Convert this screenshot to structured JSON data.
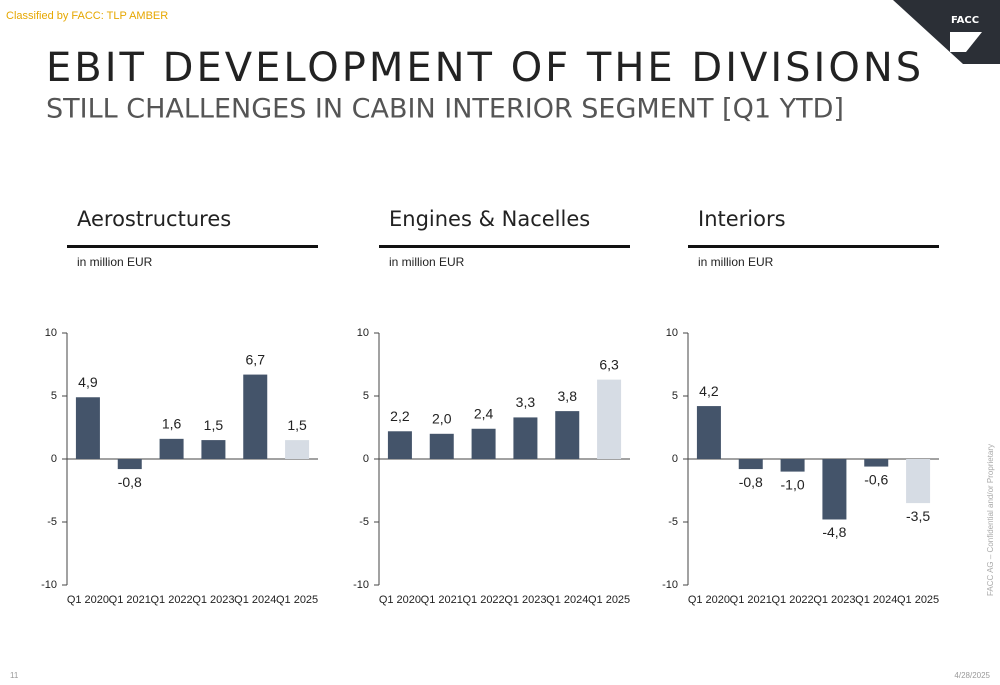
{
  "slide": {
    "classification": "Classified by FACC: TLP AMBER",
    "title": "EBIT DEVELOPMENT OF THE DIVISIONS",
    "subtitle": "STILL CHALLENGES IN CABIN INTERIOR SEGMENT [Q1 YTD]",
    "logo": "FACC",
    "page_number": "11",
    "date": "4/28/2025",
    "confidentiality": "FACC AG – Confidential and/or Proprietary"
  },
  "chart_data": [
    {
      "type": "bar",
      "title": "Aerostructures",
      "subtitle": "in million EUR",
      "categories": [
        "Q1 2020",
        "Q1 2021",
        "Q1 2022",
        "Q1 2023",
        "Q1 2024",
        "Q1 2025"
      ],
      "values": [
        4.9,
        -0.8,
        1.6,
        1.5,
        6.7,
        1.5
      ],
      "value_labels": [
        "4,9",
        "-0,8",
        "1,6",
        "1,5",
        "6,7",
        "1,5"
      ],
      "colors": [
        "#44546a",
        "#44546a",
        "#44546a",
        "#44546a",
        "#44546a",
        "#d6dce4"
      ],
      "ylim": [
        -10,
        10
      ],
      "yticks": [
        -10,
        -5,
        0,
        5,
        10
      ]
    },
    {
      "type": "bar",
      "title": "Engines & Nacelles",
      "subtitle": "in million EUR",
      "categories": [
        "Q1 2020",
        "Q1 2021",
        "Q1 2022",
        "Q1 2023",
        "Q1 2024",
        "Q1 2025"
      ],
      "values": [
        2.2,
        2.0,
        2.4,
        3.3,
        3.8,
        6.3
      ],
      "value_labels": [
        "2,2",
        "2,0",
        "2,4",
        "3,3",
        "3,8",
        "6,3"
      ],
      "colors": [
        "#44546a",
        "#44546a",
        "#44546a",
        "#44546a",
        "#44546a",
        "#d6dce4"
      ],
      "ylim": [
        -10,
        10
      ],
      "yticks": [
        -10,
        -5,
        0,
        5,
        10
      ]
    },
    {
      "type": "bar",
      "title": "Interiors",
      "subtitle": "in million EUR",
      "categories": [
        "Q1 2020",
        "Q1 2021",
        "Q1 2022",
        "Q1 2023",
        "Q1 2024",
        "Q1 2025"
      ],
      "values": [
        4.2,
        -0.8,
        -1.0,
        -4.8,
        -0.6,
        -3.5
      ],
      "value_labels": [
        "4,2",
        "-0,8",
        "-1,0",
        "-4,8",
        "-0,6",
        "-3,5"
      ],
      "colors": [
        "#44546a",
        "#44546a",
        "#44546a",
        "#44546a",
        "#44546a",
        "#d6dce4"
      ],
      "ylim": [
        -10,
        10
      ],
      "yticks": [
        -10,
        -5,
        0,
        5,
        10
      ]
    }
  ]
}
